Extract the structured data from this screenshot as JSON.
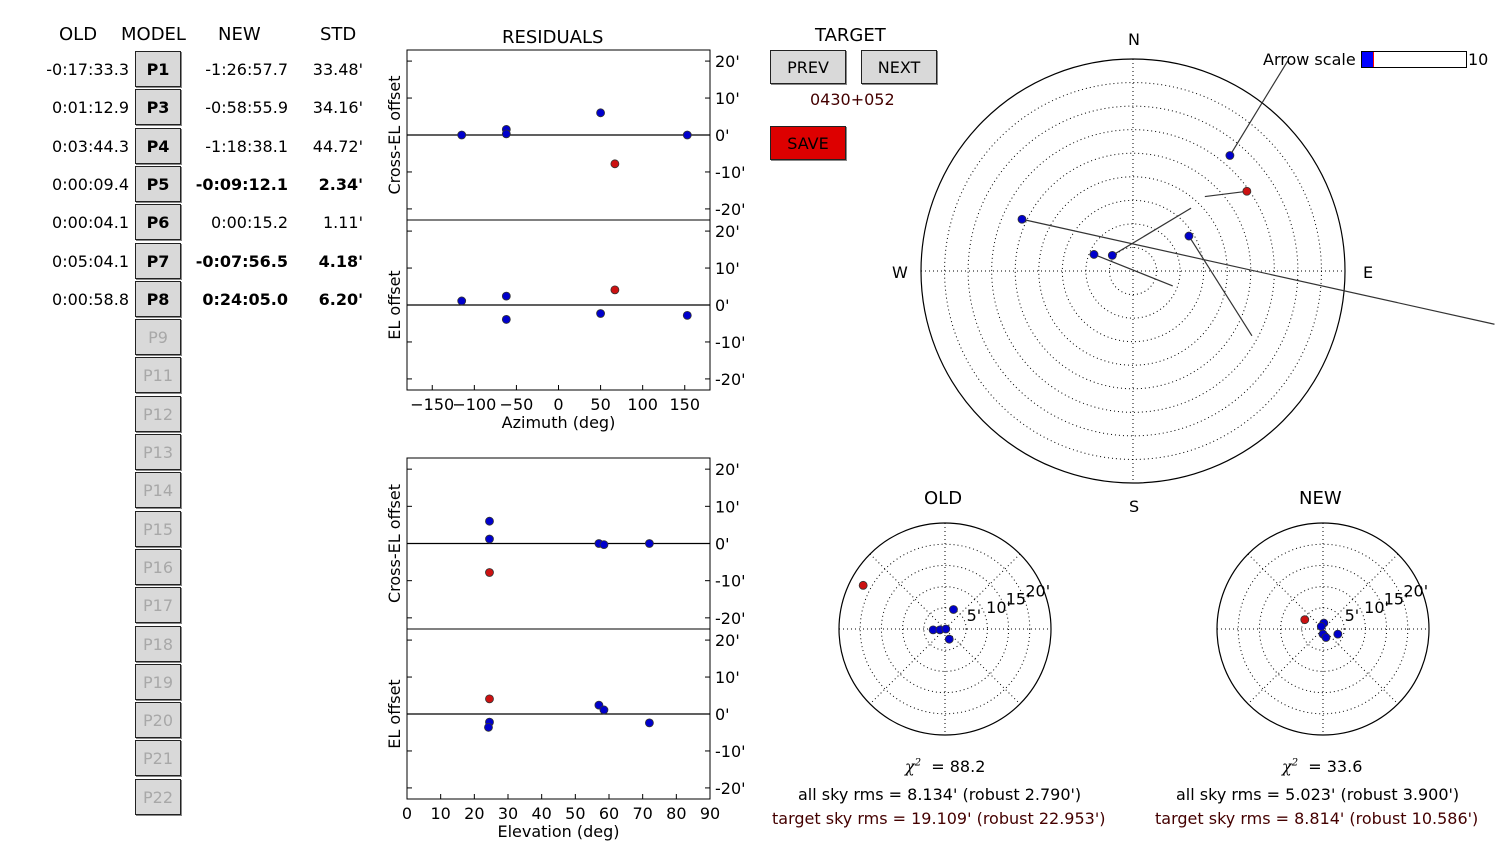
{
  "table": {
    "headers": {
      "old": "OLD",
      "model": "MODEL",
      "new": "NEW",
      "std": "STD"
    },
    "rows": [
      {
        "old": "-0:17:33.3",
        "model": "P1",
        "new": "-1:26:57.7",
        "std": "33.48'",
        "bold": false
      },
      {
        "old": "0:01:12.9",
        "model": "P3",
        "new": "-0:58:55.9",
        "std": "34.16'",
        "bold": false
      },
      {
        "old": "0:03:44.3",
        "model": "P4",
        "new": "-1:18:38.1",
        "std": "44.72'",
        "bold": false
      },
      {
        "old": "0:00:09.4",
        "model": "P5",
        "new": "-0:09:12.1",
        "std": "2.34'",
        "bold": true
      },
      {
        "old": "0:00:04.1",
        "model": "P6",
        "new": "0:00:15.2",
        "std": "1.11'",
        "bold": false
      },
      {
        "old": "0:05:04.1",
        "model": "P7",
        "new": "-0:07:56.5",
        "std": "4.18'",
        "bold": true
      },
      {
        "old": "0:00:58.8",
        "model": "P8",
        "new": "0:24:05.0",
        "std": "6.20'",
        "bold": true
      }
    ],
    "inactive_params": [
      "P9",
      "P11",
      "P12",
      "P13",
      "P14",
      "P15",
      "P16",
      "P17",
      "P18",
      "P19",
      "P20",
      "P21",
      "P22"
    ]
  },
  "residuals_title": "RESIDUALS",
  "target": {
    "title": "TARGET",
    "prev_label": "PREV",
    "next_label": "NEXT",
    "name": "0430+052",
    "save_label": "SAVE",
    "save_color": "#dd0000"
  },
  "arrow_scale": {
    "label": "Arrow scale",
    "value": "10"
  },
  "sky": {
    "north": "N",
    "south": "S",
    "east": "E",
    "west": "W"
  },
  "old_panel": {
    "title": "OLD",
    "chi2_value": "= 88.2",
    "all_sky": "all sky rms = 8.134' (robust 2.790')",
    "target_sky": "target sky rms = 19.109' (robust 22.953')"
  },
  "new_panel": {
    "title": "NEW",
    "chi2_value": "= 33.6",
    "all_sky": "all sky rms = 5.023' (robust 3.900')",
    "target_sky": "target sky rms = 8.814' (robust 10.586')"
  },
  "colors": {
    "point": "#0000cc",
    "target_point": "#cc1111",
    "target_text": "#440000"
  },
  "chart_data": [
    {
      "type": "scatter",
      "title": "RESIDUALS",
      "xlabel": "",
      "ylabel": "Cross-EL offset",
      "xlim": [
        -180,
        180
      ],
      "ylim": [
        -23,
        23
      ],
      "yticks": [
        "20'",
        "10'",
        "0'",
        "-10'",
        "-20'"
      ],
      "x": [
        -115,
        -62,
        -62,
        50,
        153,
        67
      ],
      "y": [
        0,
        1.5,
        0.3,
        6,
        0,
        -7.8
      ],
      "target_index": 5
    },
    {
      "type": "scatter",
      "xlabel": "Azimuth (deg)",
      "ylabel": "EL offset",
      "xlim": [
        -180,
        180
      ],
      "ylim": [
        -23,
        23
      ],
      "xticks": [
        "-150",
        "-100",
        "-50",
        "0",
        "50",
        "100",
        "150"
      ],
      "yticks": [
        "20'",
        "10'",
        "0'",
        "-10'",
        "-20'"
      ],
      "x": [
        -115,
        -62,
        -62,
        50,
        153,
        67
      ],
      "y": [
        1.1,
        2.4,
        -3.9,
        -2.3,
        -2.8,
        4.1
      ],
      "target_index": 5
    },
    {
      "type": "scatter",
      "xlabel": "",
      "ylabel": "Cross-EL offset",
      "xlim": [
        0,
        90
      ],
      "ylim": [
        -23,
        23
      ],
      "yticks": [
        "20'",
        "10'",
        "0'",
        "-10'",
        "-20'"
      ],
      "x": [
        24.5,
        24.5,
        57,
        58.5,
        72,
        24.5
      ],
      "y": [
        6,
        1.2,
        0,
        -0.3,
        0,
        -7.8
      ],
      "target_index": 5
    },
    {
      "type": "scatter",
      "xlabel": "Elevation (deg)",
      "ylabel": "EL offset",
      "xlim": [
        0,
        90
      ],
      "ylim": [
        -23,
        23
      ],
      "xticks": [
        "0",
        "10",
        "20",
        "30",
        "40",
        "50",
        "60",
        "70",
        "80",
        "90"
      ],
      "yticks": [
        "20'",
        "10'",
        "0'",
        "-10'",
        "-20'"
      ],
      "x": [
        24.5,
        24.2,
        57,
        58.5,
        72,
        24.5
      ],
      "y": [
        -2.2,
        -3.6,
        2.4,
        1.1,
        -2.4,
        4.1
      ],
      "target_index": 5
    },
    {
      "type": "scatter",
      "title": "OLD",
      "rticks": [
        "5'",
        "10'",
        "15'",
        "20'"
      ],
      "rmax": 25,
      "x": [
        2,
        -2.8,
        -1.2,
        0.2,
        1,
        -19.3
      ],
      "y": [
        4.6,
        -0.2,
        -0.2,
        0,
        -2.4,
        10.3
      ],
      "target_index": 5
    },
    {
      "type": "scatter",
      "title": "NEW",
      "rticks": [
        "5'",
        "10'",
        "15'",
        "20'"
      ],
      "rmax": 25,
      "x": [
        0.2,
        -0.4,
        0,
        3.5,
        0.7,
        -4.3
      ],
      "y": [
        1.4,
        0.6,
        -1.2,
        -1.2,
        -2,
        2.2
      ],
      "target_index": 5
    },
    {
      "type": "scatter",
      "title": "",
      "az": [
        -65,
        40,
        58,
        -67,
        -53,
        55
      ],
      "el": [
        38,
        26,
        62,
        72,
        79,
        31
      ],
      "arrow_dx": [
        4.5,
        0.55,
        0.6,
        0.75,
        0.75,
        -0.4
      ],
      "arrow_dy": [
        1,
        -0.9,
        0.95,
        0.3,
        -0.45,
        0.05
      ],
      "target_index": 5
    }
  ]
}
